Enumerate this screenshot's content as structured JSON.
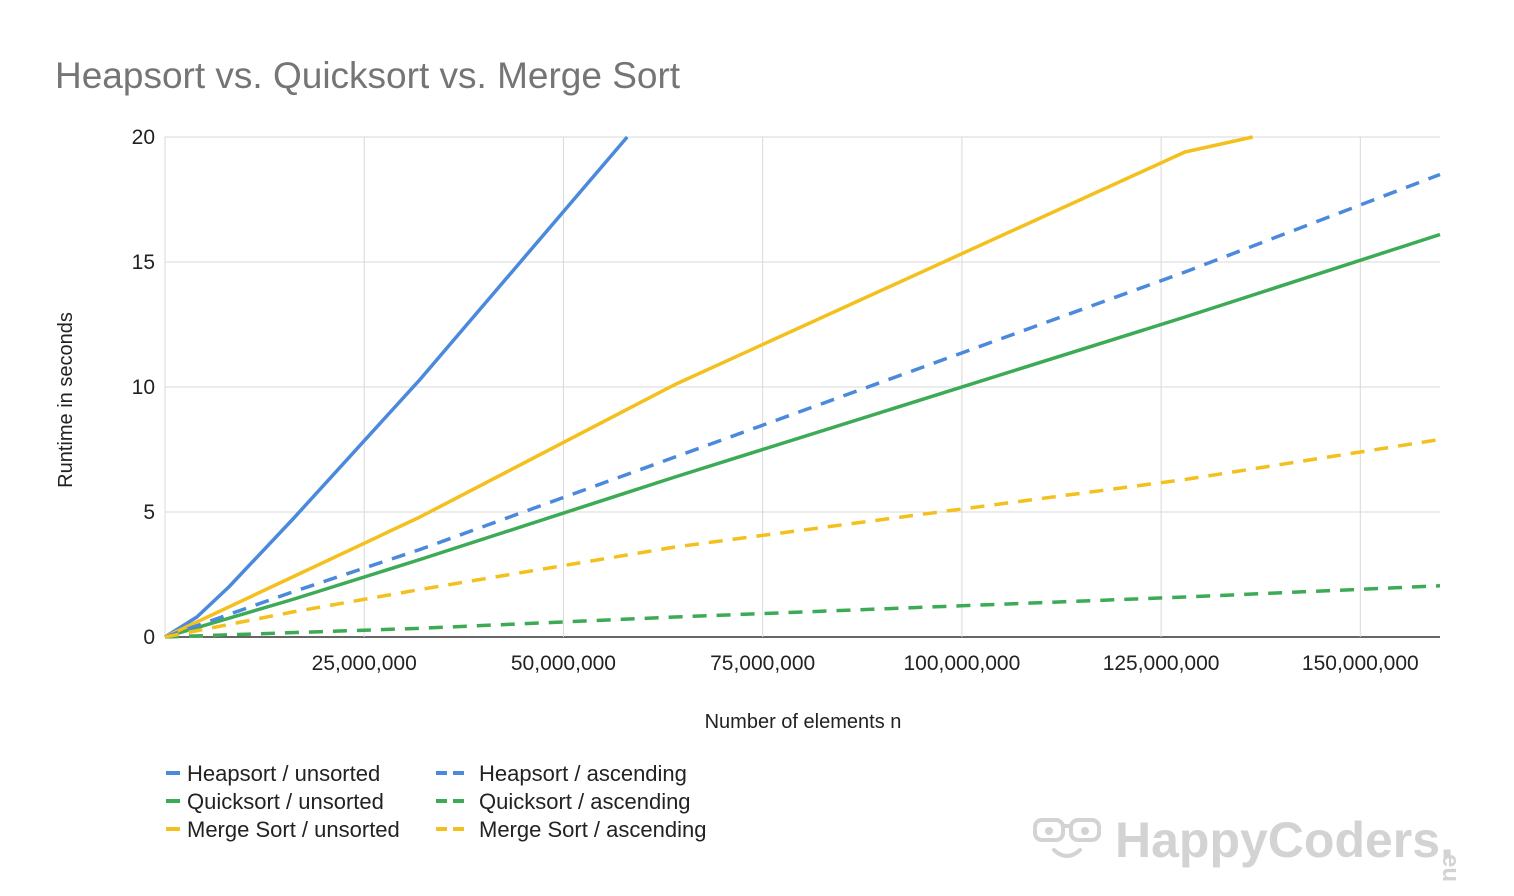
{
  "chart_data": {
    "type": "line",
    "title": "Heapsort vs. Quicksort vs. Merge Sort",
    "xlabel": "Number of elements n",
    "ylabel": "Runtime in seconds",
    "xlim": [
      0,
      160000000
    ],
    "ylim": [
      0,
      20
    ],
    "x_ticks": [
      25000000,
      50000000,
      75000000,
      100000000,
      125000000,
      150000000
    ],
    "x_tick_labels": [
      "25,000,000",
      "50,000,000",
      "75,000,000",
      "100,000,000",
      "125,000,000",
      "150,000,000"
    ],
    "y_ticks": [
      0,
      5,
      10,
      15,
      20
    ],
    "y_tick_labels": [
      "0",
      "5",
      "10",
      "15",
      "20"
    ],
    "grid": true,
    "legend_position": "bottom-left",
    "series": [
      {
        "name": "Heapsort / unsorted",
        "color": "#4a89dc",
        "dash": false,
        "points": [
          [
            0,
            0
          ],
          [
            4000000,
            0.8
          ],
          [
            8000000,
            2.0
          ],
          [
            16000000,
            4.7
          ],
          [
            32000000,
            10.3
          ],
          [
            58000000,
            20.0
          ]
        ]
      },
      {
        "name": "Quicksort / unsorted",
        "color": "#3daa56",
        "dash": false,
        "points": [
          [
            0,
            0
          ],
          [
            16000000,
            1.5
          ],
          [
            32000000,
            3.1
          ],
          [
            64000000,
            6.4
          ],
          [
            128000000,
            12.8
          ],
          [
            160000000,
            16.1
          ]
        ]
      },
      {
        "name": "Merge Sort / unsorted",
        "color": "#f4c01e",
        "dash": false,
        "points": [
          [
            0,
            0
          ],
          [
            16000000,
            2.4
          ],
          [
            32000000,
            4.8
          ],
          [
            64000000,
            10.1
          ],
          [
            128000000,
            19.4
          ],
          [
            136500000,
            20.0
          ]
        ]
      },
      {
        "name": "Heapsort / ascending",
        "color": "#4a89dc",
        "dash": true,
        "points": [
          [
            0,
            0
          ],
          [
            16000000,
            1.8
          ],
          [
            32000000,
            3.5
          ],
          [
            64000000,
            7.2
          ],
          [
            128000000,
            14.6
          ],
          [
            160000000,
            18.5
          ]
        ]
      },
      {
        "name": "Quicksort / ascending",
        "color": "#3daa56",
        "dash": true,
        "points": [
          [
            0,
            0
          ],
          [
            32000000,
            0.35
          ],
          [
            64000000,
            0.8
          ],
          [
            128000000,
            1.6
          ],
          [
            160000000,
            2.05
          ]
        ]
      },
      {
        "name": "Merge Sort / ascending",
        "color": "#f4c01e",
        "dash": true,
        "points": [
          [
            0,
            0
          ],
          [
            16000000,
            1.0
          ],
          [
            32000000,
            1.9
          ],
          [
            64000000,
            3.6
          ],
          [
            128000000,
            6.3
          ],
          [
            160000000,
            7.9
          ]
        ]
      }
    ]
  },
  "watermark": {
    "brand": "HappyCoders",
    "dot": ".",
    "tld": "eu"
  }
}
